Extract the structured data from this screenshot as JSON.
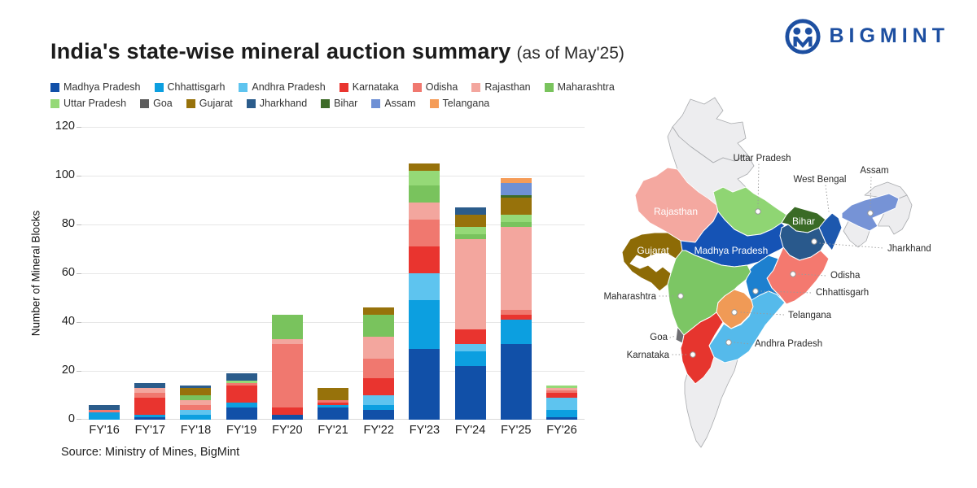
{
  "header": {
    "title": "India's state-wise mineral auction summary",
    "subtitle": "(as of May'25)",
    "brand": "BIGMINT",
    "brand_color": "#1d4fa1"
  },
  "chart_data": {
    "type": "bar",
    "stacked": true,
    "title": "India's state-wise mineral auction summary (as of May'25)",
    "xlabel": "",
    "ylabel": "Number of Mineral Blocks",
    "ylim": [
      0,
      120
    ],
    "yticks": [
      0,
      20,
      40,
      60,
      80,
      100,
      120
    ],
    "grid": true,
    "legend_position": "top",
    "categories": [
      "FY'16",
      "FY'17",
      "FY'18",
      "FY'19",
      "FY'20",
      "FY'21",
      "FY'22",
      "FY'23",
      "FY'24",
      "FY'25",
      "FY'26"
    ],
    "series": [
      {
        "name": "Madhya Pradesh",
        "color": "#1150a8",
        "values": [
          0,
          1,
          0,
          5,
          2,
          5,
          4,
          29,
          22,
          31,
          1
        ]
      },
      {
        "name": "Chhattisgarh",
        "color": "#0c9fe0",
        "values": [
          3,
          1,
          2,
          2,
          0,
          1,
          2,
          20,
          6,
          10,
          3
        ]
      },
      {
        "name": "Andhra Pradesh",
        "color": "#5ec4ef",
        "values": [
          0,
          0,
          2,
          0,
          0,
          0,
          4,
          11,
          3,
          0,
          5
        ]
      },
      {
        "name": "Karnataka",
        "color": "#e9342f",
        "values": [
          0,
          7,
          0,
          7,
          3,
          1,
          7,
          11,
          6,
          2,
          2
        ]
      },
      {
        "name": "Odisha",
        "color": "#f0786f",
        "values": [
          1,
          2,
          2,
          1,
          26,
          1,
          8,
          11,
          0,
          2,
          1
        ]
      },
      {
        "name": "Rajasthan",
        "color": "#f3a69e",
        "values": [
          0,
          2,
          2,
          0,
          2,
          0,
          9,
          7,
          37,
          34,
          1
        ]
      },
      {
        "name": "Maharashtra",
        "color": "#79c35d",
        "values": [
          0,
          0,
          2,
          0,
          10,
          0,
          9,
          7,
          2,
          2,
          0
        ]
      },
      {
        "name": "Uttar Pradesh",
        "color": "#95d977",
        "values": [
          0,
          0,
          0,
          1,
          0,
          0,
          0,
          6,
          3,
          3,
          1
        ]
      },
      {
        "name": "Goa",
        "color": "#5d5d5d",
        "values": [
          0,
          0,
          0,
          0,
          0,
          0,
          0,
          0,
          0,
          0,
          0
        ]
      },
      {
        "name": "Gujarat",
        "color": "#97720b",
        "values": [
          0,
          0,
          3,
          0,
          0,
          5,
          3,
          3,
          5,
          7,
          0
        ]
      },
      {
        "name": "Jharkhand",
        "color": "#2b5c8b",
        "values": [
          2,
          2,
          1,
          3,
          0,
          0,
          0,
          0,
          3,
          0,
          0
        ]
      },
      {
        "name": "Bihar",
        "color": "#3d6b28",
        "values": [
          0,
          0,
          0,
          0,
          0,
          0,
          0,
          0,
          0,
          1,
          0
        ]
      },
      {
        "name": "Assam",
        "color": "#6e90d5",
        "values": [
          0,
          0,
          0,
          0,
          0,
          0,
          0,
          0,
          0,
          5,
          0
        ]
      },
      {
        "name": "Telangana",
        "color": "#f59c58",
        "values": [
          0,
          0,
          0,
          0,
          0,
          0,
          0,
          0,
          0,
          2,
          0
        ]
      }
    ],
    "totals": [
      6,
      15,
      14,
      19,
      43,
      13,
      46,
      105,
      87,
      99,
      14
    ]
  },
  "source": "Source: Ministry of Mines, BigMint",
  "map": {
    "base_color": "#ededef",
    "colors": {
      "rajasthan": "#f4a8a0",
      "gujarat": "#8d6b06",
      "uttar_pradesh": "#8fd573",
      "madhya_pradesh": "#1553b5",
      "bihar": "#3a6b26",
      "west_bengal": "#1d58ae",
      "assam": "#7693d6",
      "jharkhand": "#29598c",
      "odisha": "#f4796f",
      "chhattisgarh": "#1d80cf",
      "telangana": "#f09a56",
      "maharashtra": "#7cc664",
      "goa": "#6e6e72",
      "karnataka": "#e6352e",
      "andhra_pradesh": "#55baeb"
    },
    "labels": {
      "rajasthan": "Rajasthan",
      "gujarat": "Gujarat",
      "uttar_pradesh": "Uttar Pradesh",
      "madhya_pradesh": "Madhya Pradesh",
      "bihar": "Bihar",
      "west_bengal": "West Bengal",
      "assam": "Assam",
      "jharkhand": "Jharkhand",
      "odisha": "Odisha",
      "chhattisgarh": "Chhattisgarh",
      "telangana": "Telangana",
      "maharashtra": "Maharashtra",
      "goa": "Goa",
      "karnataka": "Karnataka",
      "andhra_pradesh": "Andhra Pradesh"
    }
  }
}
